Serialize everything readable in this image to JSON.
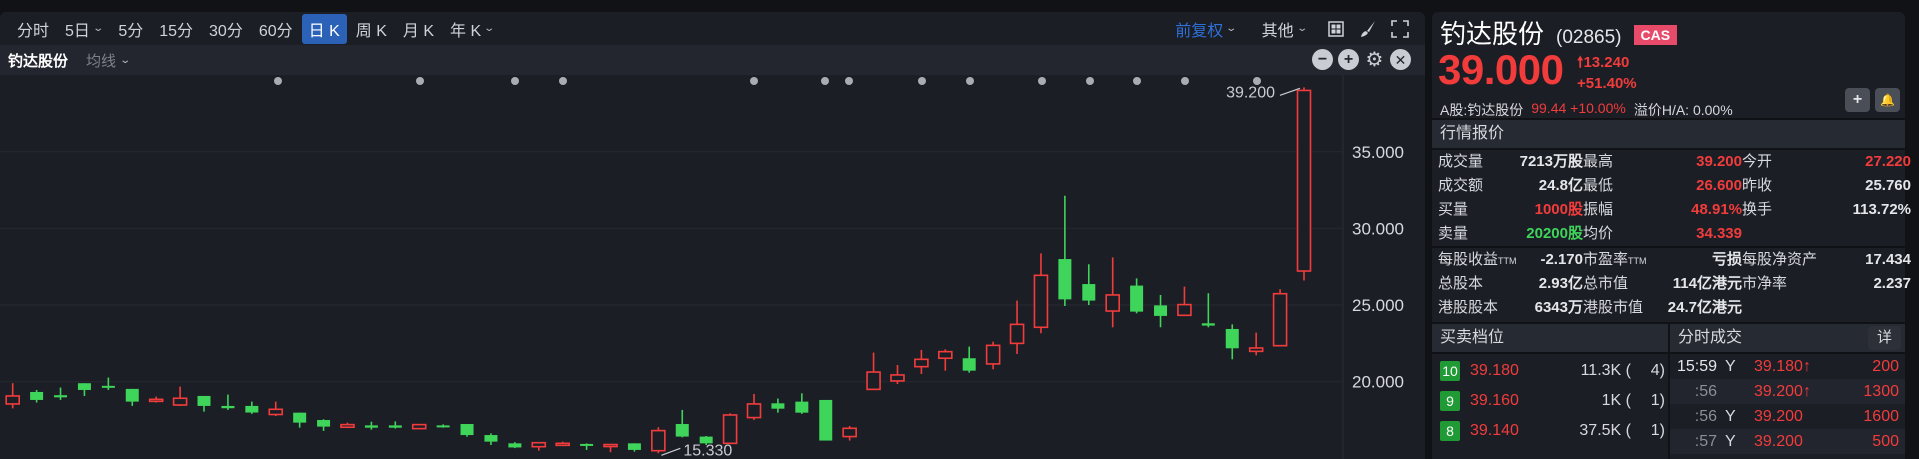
{
  "toolbar": {
    "periods": [
      {
        "label": "分时",
        "dropdown": false,
        "active": false
      },
      {
        "label": "5日",
        "dropdown": true,
        "active": false
      },
      {
        "label": "5分",
        "dropdown": false,
        "active": false
      },
      {
        "label": "15分",
        "dropdown": false,
        "active": false
      },
      {
        "label": "30分",
        "dropdown": false,
        "active": false
      },
      {
        "label": "60分",
        "dropdown": false,
        "active": false
      },
      {
        "label": "日 K",
        "dropdown": false,
        "active": true
      },
      {
        "label": "周 K",
        "dropdown": false,
        "active": false
      },
      {
        "label": "月 K",
        "dropdown": false,
        "active": false
      },
      {
        "label": "年 K",
        "dropdown": true,
        "active": false
      }
    ],
    "adjust_label": "前复权",
    "other_label": "其他",
    "icons": [
      "layout-grid-icon",
      "brush-icon",
      "fullscreen-icon"
    ]
  },
  "legend": {
    "name": "钓达股份",
    "ma_label": "均线"
  },
  "colors": {
    "up": "#f23c3c",
    "down": "#3fd45a",
    "accent": "#2b62b8",
    "badge": "#e84a6a"
  },
  "chart_data": {
    "type": "candlestick",
    "yticks": [
      "35.000",
      "30.000",
      "25.000",
      "20.000"
    ],
    "ytick_values": [
      35,
      30,
      25,
      20
    ],
    "high_label": "39.200",
    "low_label": "15.330",
    "grid": true,
    "candles": [
      [
        18.55,
        19.9,
        18.26,
        19.07
      ],
      [
        19.33,
        19.46,
        18.64,
        18.81
      ],
      [
        19.12,
        19.62,
        18.81,
        18.98
      ],
      [
        19.9,
        19.9,
        19.07,
        19.46
      ],
      [
        19.73,
        20.27,
        19.46,
        19.64
      ],
      [
        19.53,
        19.53,
        18.42,
        18.7
      ],
      [
        18.81,
        19.03,
        18.64,
        18.85
      ],
      [
        18.48,
        19.68,
        18.42,
        18.92
      ],
      [
        19.07,
        19.07,
        18.05,
        18.42
      ],
      [
        18.42,
        19.16,
        18.16,
        18.27
      ],
      [
        18.42,
        18.7,
        17.9,
        17.99
      ],
      [
        17.86,
        18.7,
        17.76,
        18.2
      ],
      [
        17.98,
        17.98,
        17.0,
        17.33
      ],
      [
        17.5,
        17.55,
        16.79,
        17.07
      ],
      [
        17.03,
        17.33,
        16.97,
        17.2
      ],
      [
        17.15,
        17.39,
        16.87,
        17.0
      ],
      [
        17.15,
        17.41,
        16.94,
        17.0
      ],
      [
        16.94,
        17.22,
        16.9,
        17.2
      ],
      [
        17.15,
        17.22,
        17.0,
        17.07
      ],
      [
        17.24,
        17.24,
        16.41,
        16.52
      ],
      [
        16.52,
        16.63,
        15.87,
        16.09
      ],
      [
        15.98,
        16.06,
        15.67,
        15.71
      ],
      [
        15.76,
        16.02,
        15.5,
        16.02
      ],
      [
        15.94,
        16.09,
        15.87,
        15.98
      ],
      [
        15.94,
        15.98,
        15.55,
        15.81
      ],
      [
        15.87,
        15.92,
        15.4,
        15.9
      ],
      [
        15.98,
        15.98,
        15.44,
        15.55
      ],
      [
        15.5,
        17.03,
        15.33,
        16.81
      ],
      [
        17.24,
        18.16,
        16.37,
        16.42
      ],
      [
        16.42,
        16.46,
        15.87,
        15.98
      ],
      [
        15.98,
        17.94,
        15.94,
        17.83
      ],
      [
        17.66,
        19.2,
        17.5,
        18.55
      ],
      [
        18.59,
        18.9,
        17.98,
        18.24
      ],
      [
        18.7,
        19.24,
        17.9,
        17.98
      ],
      [
        18.81,
        18.81,
        16.16,
        16.16
      ],
      [
        16.42,
        17.11,
        16.16,
        16.96
      ],
      [
        19.5,
        21.9,
        19.5,
        20.63
      ],
      [
        20.05,
        21.09,
        19.85,
        20.44
      ],
      [
        20.98,
        22.07,
        20.5,
        21.46
      ],
      [
        21.53,
        22.11,
        20.72,
        21.96
      ],
      [
        21.53,
        22.29,
        20.59,
        20.72
      ],
      [
        21.16,
        22.61,
        20.81,
        22.37
      ],
      [
        22.5,
        25.29,
        21.81,
        23.74
      ],
      [
        23.55,
        28.37,
        23.16,
        26.94
      ],
      [
        28.0,
        32.13,
        24.94,
        25.37
      ],
      [
        26.37,
        27.66,
        25.0,
        25.29
      ],
      [
        24.61,
        28.11,
        23.55,
        25.66
      ],
      [
        26.27,
        26.74,
        24.46,
        24.57
      ],
      [
        24.98,
        25.66,
        23.55,
        24.29
      ],
      [
        24.33,
        26.2,
        24.29,
        25.03
      ],
      [
        23.81,
        25.77,
        23.55,
        23.66
      ],
      [
        23.44,
        23.74,
        21.46,
        22.18
      ],
      [
        21.98,
        23.2,
        21.72,
        22.2
      ],
      [
        22.35,
        26.03,
        22.35,
        25.74
      ],
      [
        27.22,
        39.2,
        26.6,
        39.0
      ]
    ]
  },
  "quote": {
    "name": "钓达股份",
    "code": "(02865)",
    "tag": "CAS",
    "price": "39.000",
    "change": "13.240",
    "change_pct": "+51.40%",
    "a_share_label": "A股:钓达股份",
    "a_share_value": "99.44 +10.00%",
    "premium": "溢价H/A: 0.00%"
  },
  "market": {
    "title": "行情报价",
    "rows": [
      [
        "成交量",
        "7213万股",
        "最高",
        "39.200",
        "今开",
        "27.220"
      ],
      [
        "成交额",
        "24.8亿",
        "最低",
        "26.600",
        "昨收",
        "25.760"
      ],
      [
        "买量",
        "1000股",
        "振幅",
        "48.91%",
        "换手",
        "113.72%"
      ],
      [
        "卖量",
        "20200股",
        "均价",
        "34.339",
        "",
        ""
      ]
    ],
    "rows2": [
      [
        "每股收益",
        "-2.170",
        "市盈率",
        "亏损",
        "每股净资产",
        "17.434"
      ],
      [
        "总股本",
        "2.93亿",
        "总市值",
        "114亿港元",
        "市净率",
        "2.237"
      ],
      [
        "港股股本",
        "6343万",
        "港股市值",
        "24.7亿港元",
        "",
        ""
      ]
    ],
    "ttm": "TTM"
  },
  "orderbook": {
    "title": "买卖档位",
    "rows": [
      {
        "level": "10",
        "price": "39.180",
        "volume": "11.3K (",
        "count": "4)"
      },
      {
        "level": "9",
        "price": "39.160",
        "volume": "1K (",
        "count": "1)"
      },
      {
        "level": "8",
        "price": "39.140",
        "volume": "37.5K (",
        "count": "1)"
      }
    ]
  },
  "trades": {
    "title": "分时成交",
    "detail_label": "详",
    "rows": [
      {
        "time": "15:59",
        "flag": "Y",
        "price": "39.180↑",
        "volume": "200"
      },
      {
        "time": ":56",
        "flag": "",
        "price": "39.200↑",
        "volume": "1300"
      },
      {
        "time": ":56",
        "flag": "Y",
        "price": "39.200",
        "volume": "1600"
      },
      {
        "time": ":57",
        "flag": "Y",
        "price": "39.200",
        "volume": "500"
      }
    ]
  }
}
